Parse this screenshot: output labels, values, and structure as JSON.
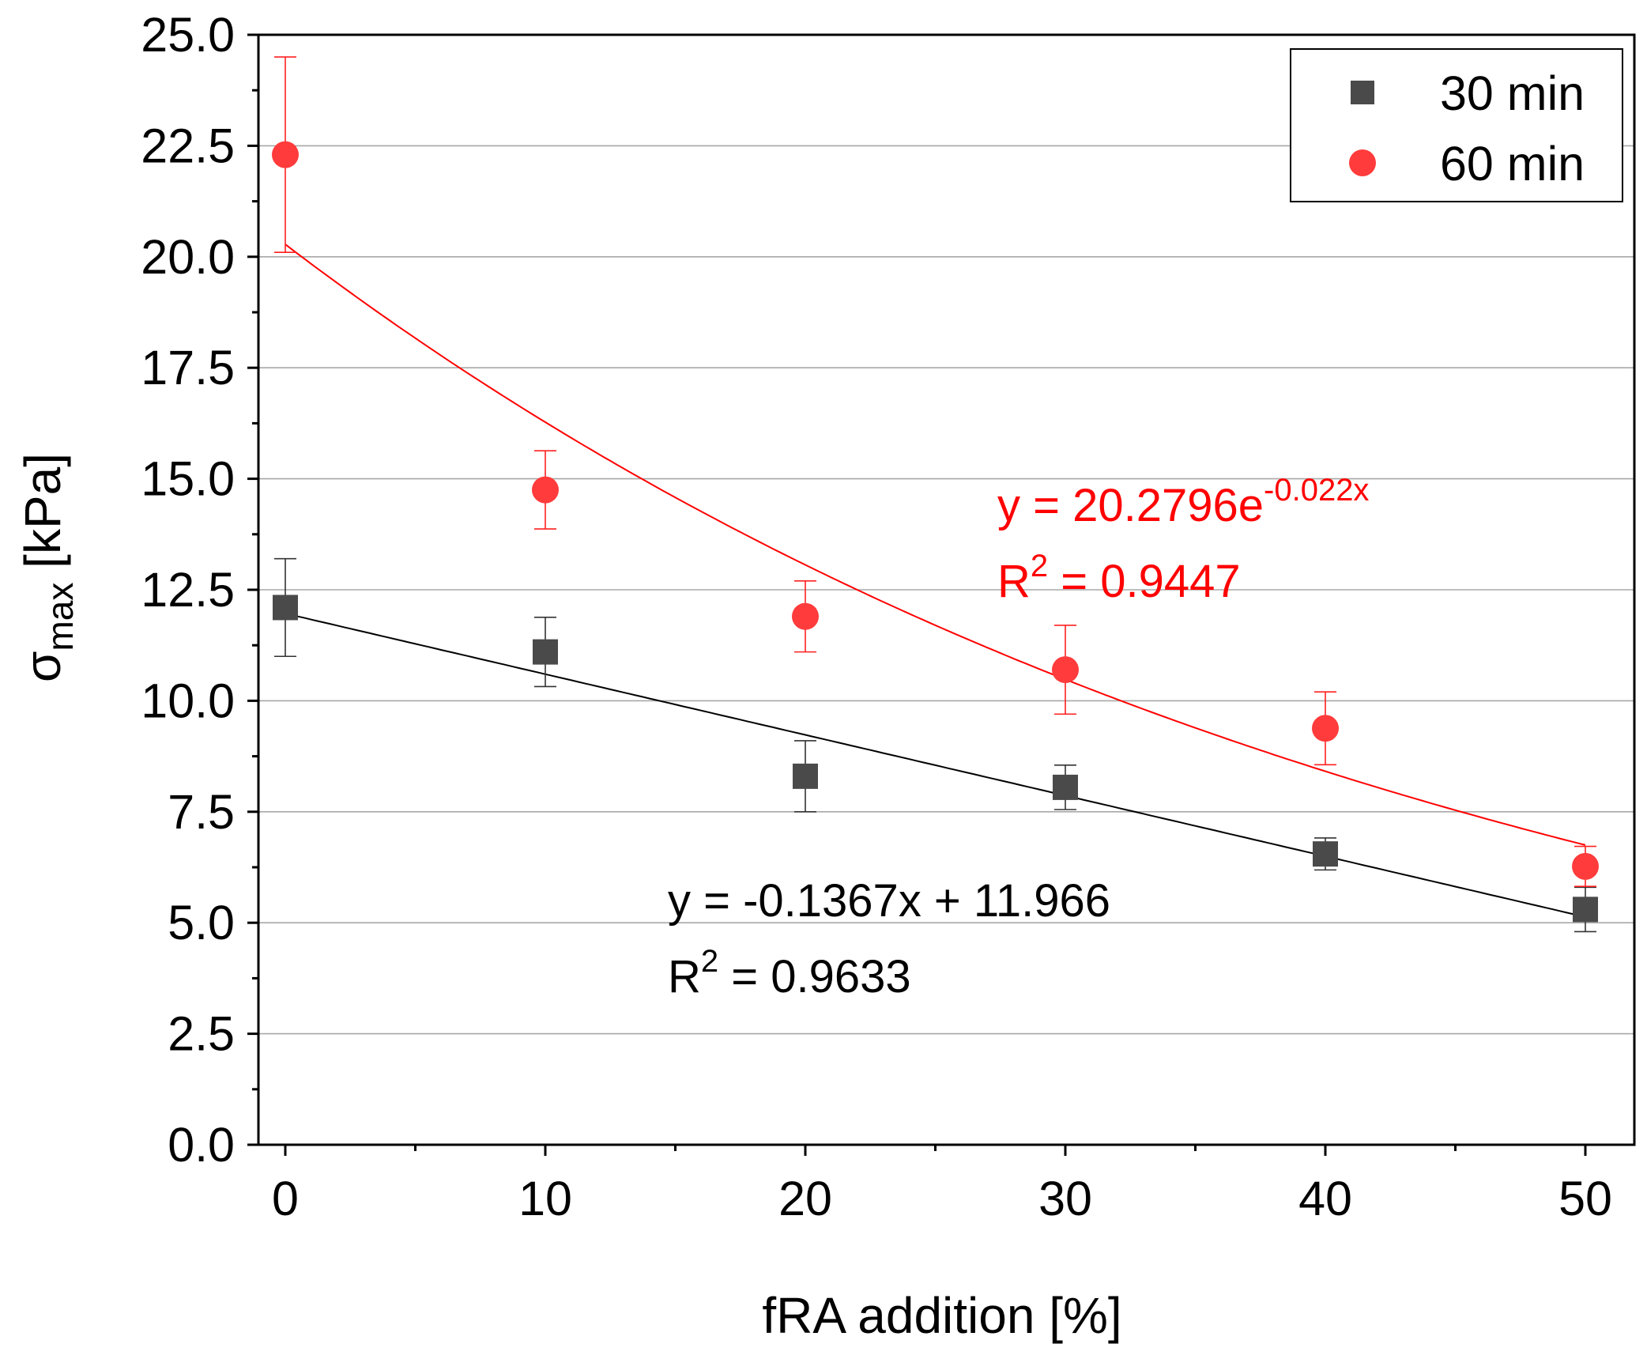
{
  "chart_data": {
    "type": "scatter",
    "xlabel": "fRA addition [%]",
    "ylabel_main": "σ",
    "ylabel_sub": "max",
    "ylabel_unit": " [kPa]",
    "xlim": [
      -1,
      51.5
    ],
    "ylim": [
      0,
      25
    ],
    "x_ticks": [
      0,
      10,
      20,
      30,
      40,
      50
    ],
    "x_tick_labels": [
      "0",
      "10",
      "20",
      "30",
      "40",
      "50"
    ],
    "y_ticks": [
      0,
      2.5,
      5,
      7.5,
      10,
      12.5,
      15,
      17.5,
      20,
      22.5,
      25
    ],
    "y_tick_labels": [
      "0.0",
      "2.5",
      "5.0",
      "7.5",
      "10.0",
      "12.5",
      "15.0",
      "17.5",
      "20.0",
      "22.5",
      "25.0"
    ],
    "grid": true,
    "legend_position": "top-right",
    "series": [
      {
        "name": "30 min",
        "marker": "square",
        "color": "#4a4a4a",
        "line_color": "#000000",
        "x": [
          0,
          10,
          20,
          30,
          40,
          50
        ],
        "y": [
          12.1,
          11.1,
          8.3,
          8.05,
          6.55,
          5.3
        ],
        "err": [
          1.1,
          0.78,
          0.8,
          0.5,
          0.36,
          0.5
        ],
        "fit": {
          "kind": "linear",
          "slope": -0.1367,
          "intercept": 11.966,
          "equation": "y = -0.1367x + 11.966",
          "r2_prefix": "R",
          "r2_exp": "2",
          "r2_value": " = 0.9633"
        }
      },
      {
        "name": "60 min",
        "marker": "circle",
        "color": "#ff3b3b",
        "line_color": "#ff0000",
        "x": [
          0,
          10,
          20,
          30,
          40,
          50
        ],
        "y": [
          22.3,
          14.75,
          11.9,
          10.7,
          9.38,
          6.27
        ],
        "err": [
          2.2,
          0.88,
          0.8,
          1.0,
          0.82,
          0.45
        ],
        "fit": {
          "kind": "exponential",
          "a": 20.2796,
          "b": -0.022,
          "equation_base": "y = 20.2796e",
          "equation_exp": "-0.022x",
          "r2_prefix": "R",
          "r2_exp": "2",
          "r2_value": " = 0.9447"
        }
      }
    ]
  }
}
